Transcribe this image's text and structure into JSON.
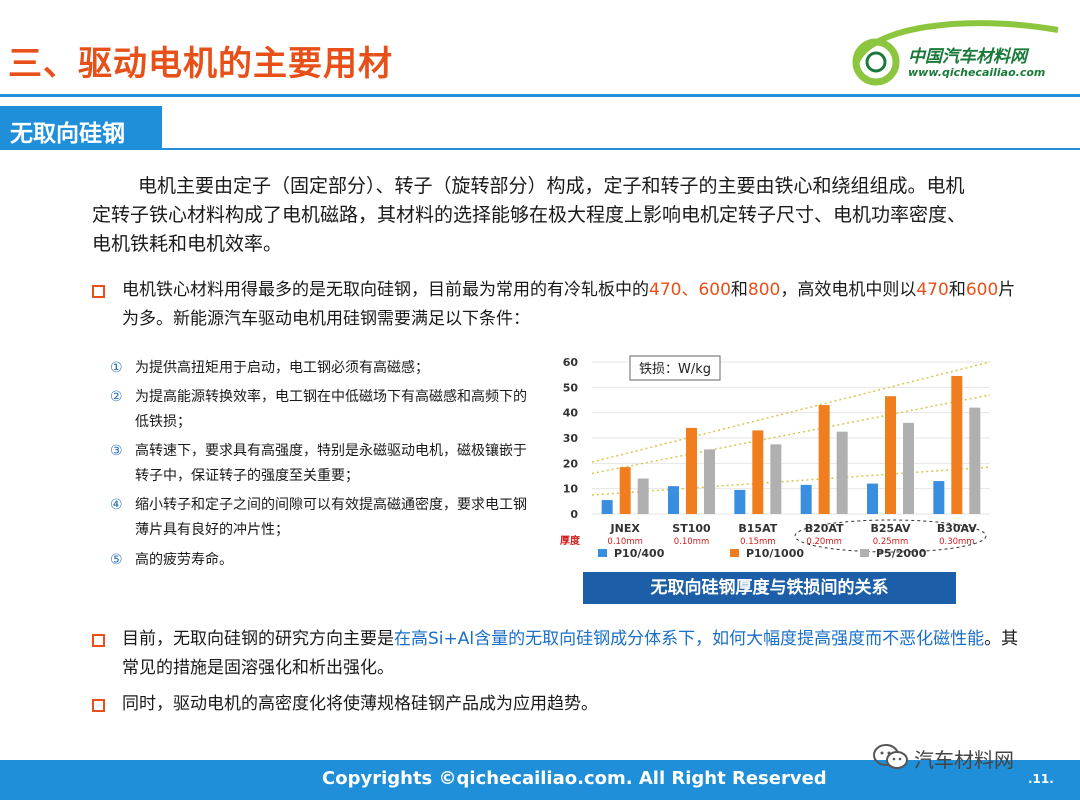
{
  "header": {
    "title": "三、驱动电机的主要用材",
    "logo_name": "中国汽车材料网",
    "logo_url": "www.qichecailiao.com"
  },
  "section": {
    "label": "无取向硅钢"
  },
  "intro": "电机主要由定子（固定部分）、转子（旋转部分）构成，定子和转子的主要由铁心和绕组组成。电机定转子铁心材料构成了电机磁路，其材料的选择能够在极大程度上影响电机定转子尺寸、电机功率密度、电机铁耗和电机效率。",
  "bullet1": {
    "t1": "电机铁心材料用得最多的是无取向硅钢，目前最为常用的有冷轧板中的",
    "h1": "470、600",
    "t2": "和",
    "h2": "800",
    "t3": "，高效电机中则以",
    "h3": "470",
    "t4": "和",
    "h4": "600",
    "t5": "片为多。新能源汽车驱动电机用硅钢需要满足以下条件："
  },
  "conditions": [
    {
      "num": "①",
      "text": "为提供高扭矩用于启动，电工钢必须有高磁感；"
    },
    {
      "num": "②",
      "text": "为提高能源转换效率，电工钢在中低磁场下有高磁感和高频下的低铁损；"
    },
    {
      "num": "③",
      "text": "高转速下，要求具有高强度，特别是永磁驱动电机，磁极镶嵌于转子中，保证转子的强度至关重要；"
    },
    {
      "num": "④",
      "text": "缩小转子和定子之间的间隙可以有效提高磁通密度，要求电工钢薄片具有良好的冲片性；"
    },
    {
      "num": "⑤",
      "text": "高的疲劳寿命。"
    }
  ],
  "chart_data": {
    "type": "bar",
    "title": "铁损：W/kg",
    "categories": [
      "JNEX",
      "ST100",
      "B15AT",
      "B20AT",
      "B25AV",
      "B30AV"
    ],
    "thickness_label": "厚度",
    "thickness": [
      "0.10mm",
      "0.10mm",
      "0.15mm",
      "0.20mm",
      "0.25mm",
      "0.30mm"
    ],
    "ylim": [
      0,
      60
    ],
    "yticks": [
      0,
      10,
      20,
      30,
      40,
      50,
      60
    ],
    "grid": true,
    "legend_position": "bottom",
    "series": [
      {
        "name": "P10/400",
        "color": "#3a8ee0",
        "values": [
          5.5,
          11,
          9.5,
          11.5,
          12,
          13
        ]
      },
      {
        "name": "P10/1000",
        "color": "#f07d1e",
        "values": [
          18.5,
          34,
          33,
          43,
          46.5,
          54.5
        ]
      },
      {
        "name": "P5/2000",
        "color": "#b0b0b0",
        "values": [
          14,
          25.5,
          27.5,
          32.5,
          36,
          42
        ]
      }
    ]
  },
  "chart_caption": "无取向硅钢厚度与铁损间的关系",
  "bullet2": {
    "t1": "目前，无取向硅钢的研究方向主要是",
    "h1": "在高Si+Al含量的无取向硅钢成分体系下，如何大幅度提高强度而不恶化磁性能",
    "t2": "。其常见的措施是固溶强化和析出强化。"
  },
  "bullet3": "同时，驱动电机的高密度化将使薄规格硅钢产品成为应用趋势。",
  "footer": {
    "copyright": "Copyrights ©qichecailiao.com. All Right Reserved",
    "page": ".11.",
    "wechat": "汽车材料网"
  }
}
